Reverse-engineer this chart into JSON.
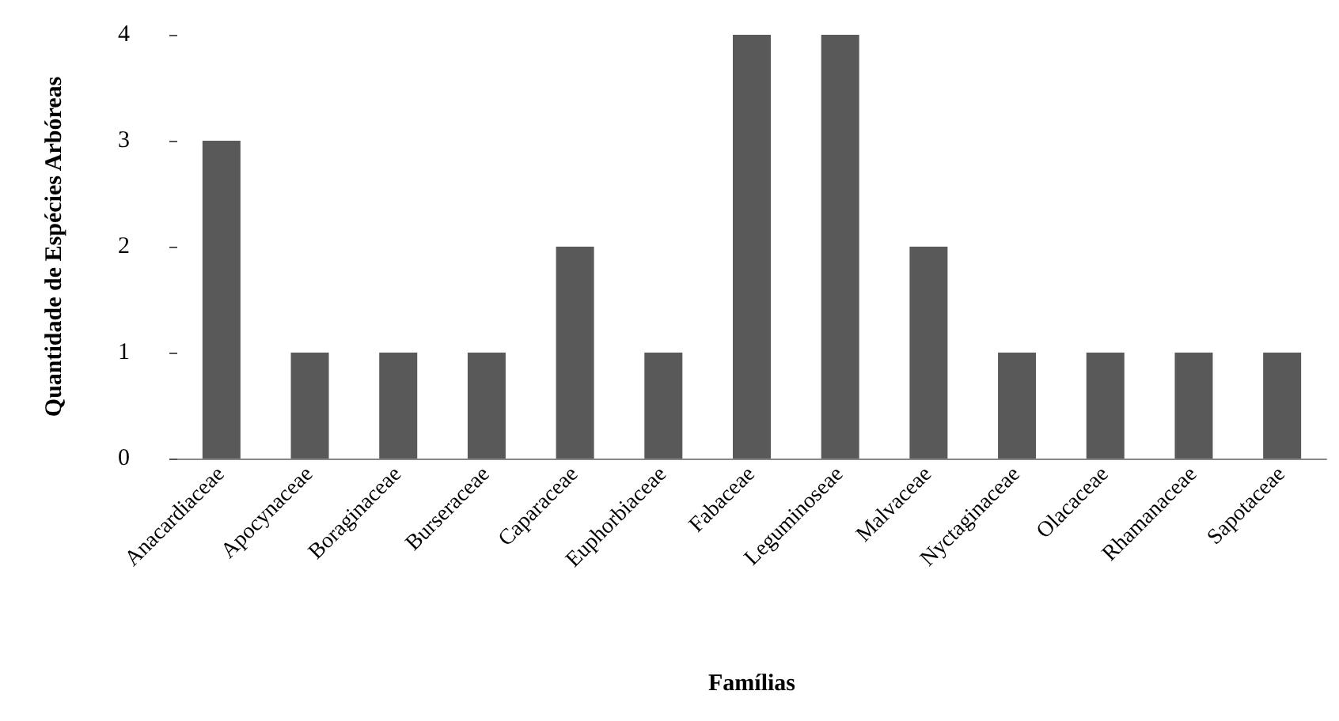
{
  "chart_data": {
    "type": "bar",
    "xlabel": "Famílias",
    "ylabel": "Quantidade de Espécies Arbóreas",
    "categories": [
      "Anacardiaceae",
      "Apocynaceae",
      "Boraginaceae",
      "Burseraceae",
      "Caparaceae",
      "Euphorbiaceae",
      "Fabaceae",
      "Leguminoseae",
      "Malvaceae",
      "Nyctaginaceae",
      "Olacaceae",
      "Rhamanaceae",
      "Sapotaceae"
    ],
    "values": [
      3,
      1,
      1,
      1,
      2,
      1,
      4,
      4,
      2,
      1,
      1,
      1,
      1
    ],
    "color": "#595959",
    "ylim": [
      0,
      4
    ],
    "yticks": [
      0,
      1,
      2,
      3,
      4
    ]
  }
}
